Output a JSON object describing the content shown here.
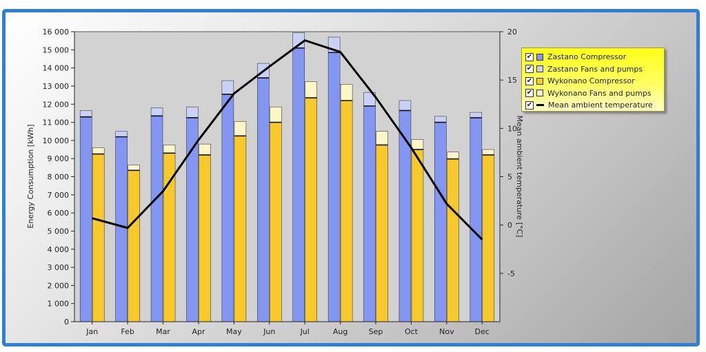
{
  "chart_data": {
    "type": "bar",
    "categories": [
      "Jan",
      "Feb",
      "Mar",
      "Apr",
      "May",
      "Jun",
      "Jul",
      "Aug",
      "Sep",
      "Oct",
      "Nov",
      "Dec"
    ],
    "ylabel": "Energy Consumption [kWh]",
    "y2label": "Mean ambient temperature [°C]",
    "ylim": [
      0,
      16000
    ],
    "y2lim": [
      -10,
      20
    ],
    "yticks": [
      "0",
      "1 000",
      "2 000",
      "3 000",
      "4 000",
      "5 000",
      "6 000",
      "7 000",
      "8 000",
      "9 000",
      "10 000",
      "11 000",
      "12 000",
      "13 000",
      "14 000",
      "15 000",
      "16 000"
    ],
    "y2ticks": [
      "-5",
      "0",
      "5",
      "10",
      "15",
      "20"
    ],
    "grid": false,
    "legend_position": "right",
    "stacks": [
      {
        "segments": [
          {
            "name": "Zastano Compressor",
            "color": "#8296f2",
            "values": [
              11300,
              10200,
              11350,
              11250,
              12550,
              13450,
              15100,
              14850,
              11900,
              11650,
              11000,
              11250
            ]
          },
          {
            "name": "Zastano Fans and pumps",
            "color": "#c9d2f6",
            "values": [
              350,
              300,
              450,
              600,
              750,
              800,
              850,
              850,
              750,
              550,
              330,
              300
            ]
          }
        ]
      },
      {
        "segments": [
          {
            "name": "Wykonano Compressor",
            "color": "#f7c92d",
            "values": [
              9250,
              8350,
              9300,
              9200,
              10250,
              11000,
              12350,
              12200,
              9750,
              9500,
              8980,
              9200
            ]
          },
          {
            "name": "Wykonano Fans and pumps",
            "color": "#fdf6c6",
            "values": [
              350,
              300,
              450,
              600,
              800,
              850,
              900,
              900,
              750,
              550,
              380,
              300
            ]
          }
        ]
      }
    ],
    "line": {
      "name": "Mean ambient temperature",
      "color": "#000000",
      "axis": "right",
      "values": [
        0.7,
        -0.3,
        3.5,
        8.8,
        13.6,
        16.4,
        19.1,
        17.9,
        13.2,
        8,
        2.2,
        -1.5
      ]
    }
  },
  "legend": {
    "items": [
      {
        "label": "Zastano Compressor",
        "color": "#8296f2",
        "kind": "box"
      },
      {
        "label": "Zastano Fans and pumps",
        "color": "#c9d2f6",
        "kind": "box"
      },
      {
        "label": "Wykonano Compressor",
        "color": "#f7c92d",
        "kind": "box"
      },
      {
        "label": "Wykonano Fans and pumps",
        "color": "#fdf6c6",
        "kind": "box"
      },
      {
        "label": "Mean ambient temperature",
        "color": "#000000",
        "kind": "line"
      }
    ],
    "check_glyph": "✔"
  }
}
